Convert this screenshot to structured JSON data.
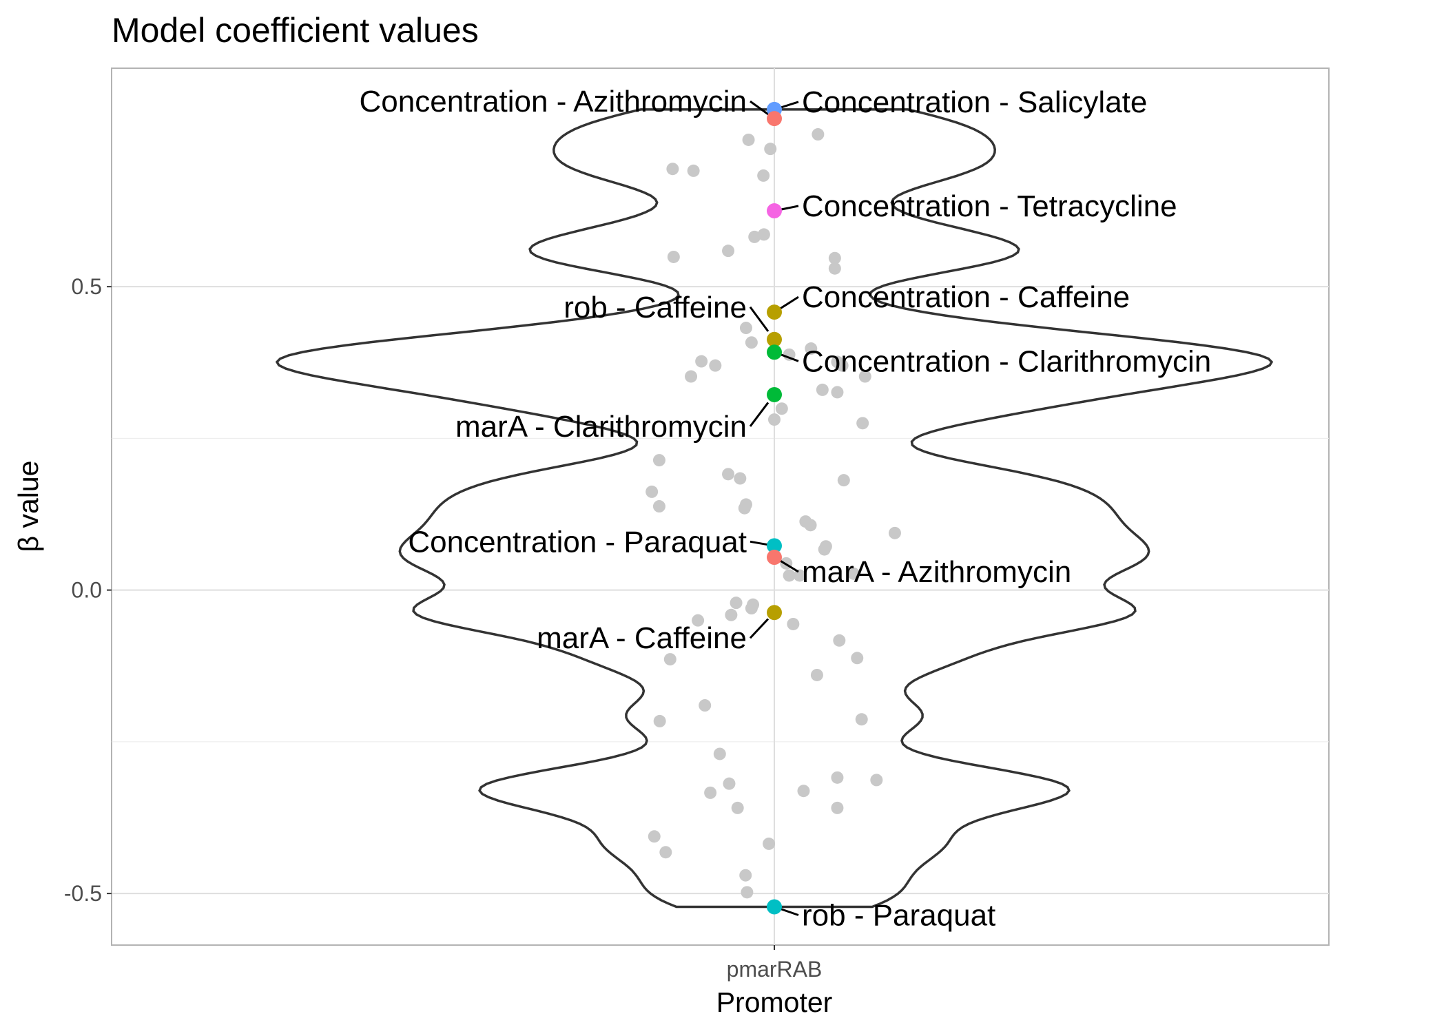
{
  "chart_data": {
    "type": "scatter",
    "title": "Model coefficient values",
    "xlabel": "Promoter",
    "ylabel": "β value",
    "categories": [
      "pmarRAB"
    ],
    "ylim": [
      -0.585,
      0.86
    ],
    "yticks": [
      -0.5,
      0.0,
      0.5
    ],
    "ytick_labels": [
      "-0.5",
      "0.0",
      "0.5"
    ],
    "grid": true,
    "legend": "none",
    "violin_outline_color": "#333333",
    "background_point_color": "#c8c8c8",
    "labeled_points": [
      {
        "label": "Concentration - Salicylate",
        "y": 0.792,
        "color": "#619CFF",
        "side": "right"
      },
      {
        "label": "Concentration - Azithromycin",
        "y": 0.777,
        "color": "#F8766D",
        "side": "left"
      },
      {
        "label": "Concentration - Tetracycline",
        "y": 0.625,
        "color": "#F564E3",
        "side": "right"
      },
      {
        "label": "Concentration - Caffeine",
        "y": 0.458,
        "color": "#B79F00",
        "side": "right"
      },
      {
        "label": "rob - Caffeine",
        "y": 0.413,
        "color": "#B79F00",
        "side": "left"
      },
      {
        "label": "Concentration - Clarithromycin",
        "y": 0.392,
        "color": "#00BA38",
        "side": "right"
      },
      {
        "label": "marA - Clarithromycin",
        "y": 0.322,
        "color": "#00BA38",
        "side": "left"
      },
      {
        "label": "Concentration - Paraquat",
        "y": 0.073,
        "color": "#00BFC4",
        "side": "left"
      },
      {
        "label": "marA - Azithromycin",
        "y": 0.054,
        "color": "#F8766D",
        "side": "right"
      },
      {
        "label": "marA - Caffeine",
        "y": -0.037,
        "color": "#B79F00",
        "side": "left"
      },
      {
        "label": "rob - Paraquat",
        "y": -0.522,
        "color": "#00BFC4",
        "side": "right"
      }
    ],
    "background_points": [
      {
        "x": -0.052,
        "y": 0.742
      },
      {
        "x": 0.088,
        "y": 0.751
      },
      {
        "x": -0.008,
        "y": 0.727
      },
      {
        "x": -0.205,
        "y": 0.694
      },
      {
        "x": -0.163,
        "y": 0.691
      },
      {
        "x": -0.022,
        "y": 0.683
      },
      {
        "x": -0.04,
        "y": 0.582
      },
      {
        "x": -0.021,
        "y": 0.586
      },
      {
        "x": -0.093,
        "y": 0.559
      },
      {
        "x": -0.203,
        "y": 0.549
      },
      {
        "x": 0.122,
        "y": 0.547
      },
      {
        "x": 0.122,
        "y": 0.53
      },
      {
        "x": -0.057,
        "y": 0.432
      },
      {
        "x": -0.046,
        "y": 0.408
      },
      {
        "x": 0.074,
        "y": 0.398
      },
      {
        "x": 0.03,
        "y": 0.388
      },
      {
        "x": -0.147,
        "y": 0.377
      },
      {
        "x": -0.119,
        "y": 0.37
      },
      {
        "x": 0.127,
        "y": 0.376
      },
      {
        "x": 0.137,
        "y": 0.37
      },
      {
        "x": -0.168,
        "y": 0.352
      },
      {
        "x": 0.183,
        "y": 0.352
      },
      {
        "x": 0.097,
        "y": 0.33
      },
      {
        "x": 0.127,
        "y": 0.326
      },
      {
        "x": 0.015,
        "y": 0.299
      },
      {
        "x": 0.0,
        "y": 0.281
      },
      {
        "x": 0.178,
        "y": 0.275
      },
      {
        "x": -0.232,
        "y": 0.214
      },
      {
        "x": -0.093,
        "y": 0.191
      },
      {
        "x": -0.069,
        "y": 0.184
      },
      {
        "x": 0.14,
        "y": 0.181
      },
      {
        "x": -0.247,
        "y": 0.162
      },
      {
        "x": -0.232,
        "y": 0.138
      },
      {
        "x": -0.057,
        "y": 0.141
      },
      {
        "x": -0.06,
        "y": 0.135
      },
      {
        "x": 0.063,
        "y": 0.113
      },
      {
        "x": 0.073,
        "y": 0.107
      },
      {
        "x": 0.243,
        "y": 0.094
      },
      {
        "x": 0.104,
        "y": 0.072
      },
      {
        "x": 0.101,
        "y": 0.067
      },
      {
        "x": 0.024,
        "y": 0.044
      },
      {
        "x": 0.16,
        "y": 0.027
      },
      {
        "x": 0.03,
        "y": 0.024
      },
      {
        "x": 0.051,
        "y": 0.024
      },
      {
        "x": -0.077,
        "y": -0.021
      },
      {
        "x": -0.043,
        "y": -0.024
      },
      {
        "x": -0.046,
        "y": -0.03
      },
      {
        "x": -0.087,
        "y": -0.041
      },
      {
        "x": -0.154,
        "y": -0.05
      },
      {
        "x": 0.038,
        "y": -0.056
      },
      {
        "x": 0.131,
        "y": -0.083
      },
      {
        "x": -0.21,
        "y": -0.114
      },
      {
        "x": 0.167,
        "y": -0.112
      },
      {
        "x": 0.086,
        "y": -0.14
      },
      {
        "x": -0.14,
        "y": -0.19
      },
      {
        "x": -0.231,
        "y": -0.216
      },
      {
        "x": 0.176,
        "y": -0.213
      },
      {
        "x": -0.11,
        "y": -0.27
      },
      {
        "x": 0.127,
        "y": -0.309
      },
      {
        "x": 0.206,
        "y": -0.313
      },
      {
        "x": -0.091,
        "y": -0.319
      },
      {
        "x": -0.129,
        "y": -0.334
      },
      {
        "x": 0.059,
        "y": -0.331
      },
      {
        "x": -0.074,
        "y": -0.359
      },
      {
        "x": 0.127,
        "y": -0.359
      },
      {
        "x": -0.242,
        "y": -0.406
      },
      {
        "x": -0.219,
        "y": -0.432
      },
      {
        "x": -0.011,
        "y": -0.418
      },
      {
        "x": -0.058,
        "y": -0.47
      },
      {
        "x": -0.055,
        "y": -0.498
      }
    ]
  }
}
